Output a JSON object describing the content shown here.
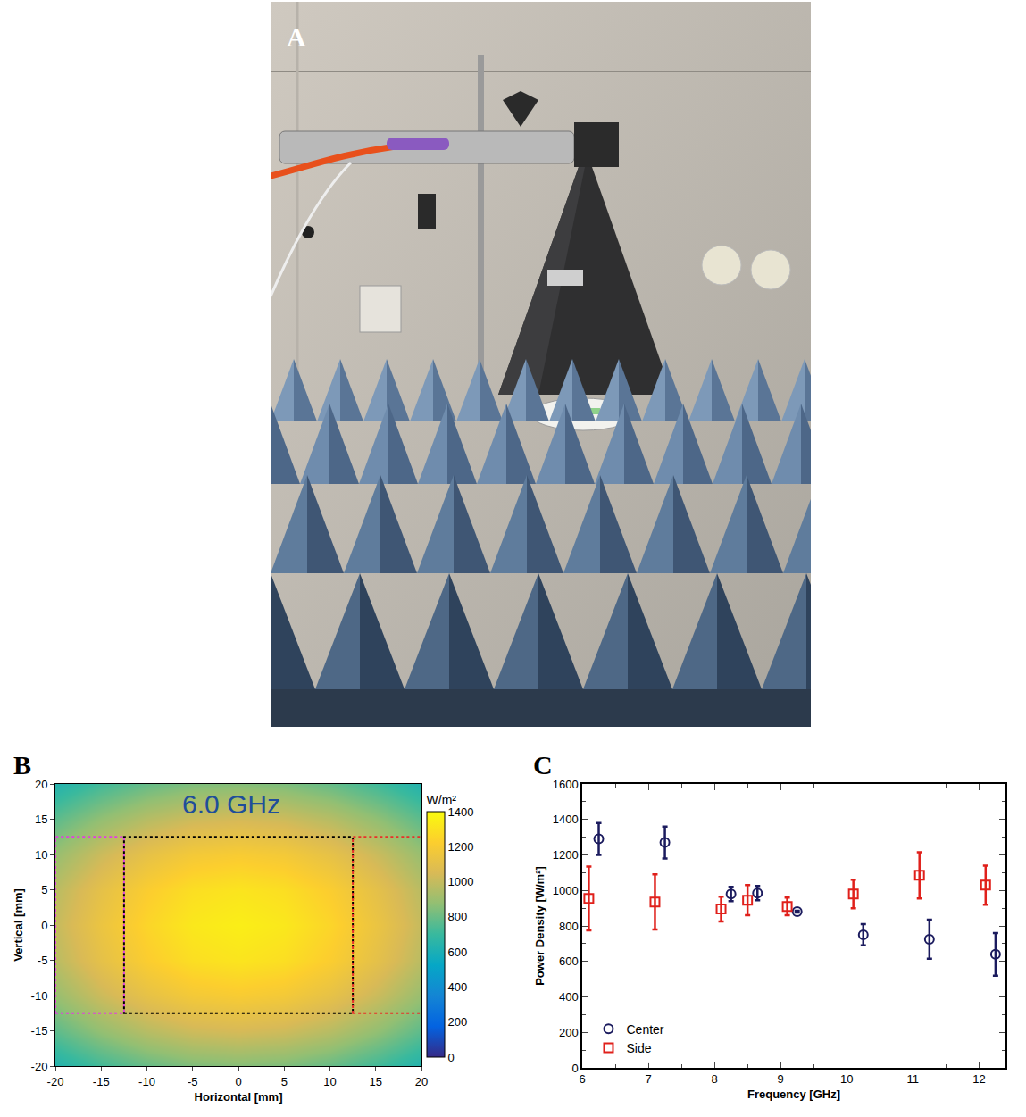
{
  "photo": {
    "label": "A"
  },
  "chart_data": [
    {
      "type": "heatmap",
      "label": "B",
      "annotations": [
        "6.0 GHz"
      ],
      "x_label": "Horizontal [mm]",
      "y_label": "Vertical [mm]",
      "x": [
        -20,
        -15,
        -10,
        -5,
        0,
        5,
        10,
        15,
        20
      ],
      "y": [
        -20,
        -15,
        -10,
        -5,
        0,
        5,
        10,
        15,
        20
      ],
      "cells": [
        [
          631,
          720,
          791,
          837,
          852,
          837,
          791,
          720,
          631
        ],
        [
          772,
          880,
          967,
          1023,
          1042,
          1023,
          967,
          880,
          772
        ],
        [
          891,
          1016,
          1116,
          1181,
          1203,
          1181,
          1116,
          1016,
          891
        ],
        [
          972,
          1108,
          1217,
          1288,
          1312,
          1288,
          1217,
          1108,
          972
        ],
        [
          1000,
          1140,
          1252,
          1325,
          1350,
          1325,
          1252,
          1140,
          1000
        ],
        [
          972,
          1108,
          1217,
          1288,
          1312,
          1288,
          1217,
          1108,
          972
        ],
        [
          891,
          1016,
          1116,
          1181,
          1203,
          1181,
          1116,
          1016,
          891
        ],
        [
          772,
          880,
          967,
          1023,
          1042,
          1023,
          967,
          880,
          772
        ],
        [
          631,
          720,
          791,
          837,
          852,
          837,
          791,
          720,
          631
        ]
      ],
      "xlim": [
        -20,
        20
      ],
      "ylim": [
        -20,
        20
      ],
      "xticks": [
        -20,
        -15,
        -10,
        -5,
        0,
        5,
        10,
        15,
        20
      ],
      "yticks": [
        -20,
        -15,
        -10,
        -5,
        0,
        5,
        10,
        15,
        20
      ],
      "colorbar": {
        "title": "W/m²",
        "range": [
          0,
          1400
        ],
        "ticks": [
          0,
          200,
          400,
          600,
          800,
          1000,
          1200,
          1400
        ]
      },
      "regions": [
        {
          "x": [
            -20,
            -12.5
          ],
          "y": [
            -12.5,
            12.5
          ],
          "color": "#e040e0"
        },
        {
          "x": [
            -12.5,
            12.5
          ],
          "y": [
            -12.5,
            12.5
          ],
          "color": "#000000"
        },
        {
          "x": [
            12.5,
            20
          ],
          "y": [
            -12.5,
            12.5
          ],
          "color": "#e8302a"
        }
      ]
    },
    {
      "type": "scatter",
      "label": "C",
      "x_label": "Frequency [GHz]",
      "y_label": "Power Density [W/m²]",
      "xlim": [
        6,
        12.4
      ],
      "ylim": [
        0,
        1600
      ],
      "xticks": [
        6,
        7,
        8,
        9,
        10,
        11,
        12
      ],
      "yticks": [
        0,
        200,
        400,
        600,
        800,
        1000,
        1200,
        1400,
        1600
      ],
      "legend": "lower left",
      "series": [
        {
          "name": "Center",
          "color": "#1b1b5e",
          "marker": "circle-open",
          "x": [
            6.25,
            7.25,
            8.25,
            8.65,
            9.25,
            10.25,
            11.25,
            12.25
          ],
          "values": [
            1290,
            1270,
            980,
            985,
            880,
            750,
            725,
            640
          ],
          "errors": [
            90,
            90,
            40,
            40,
            5,
            60,
            110,
            120
          ]
        },
        {
          "name": "Side",
          "color": "#e0201b",
          "marker": "square-open",
          "x": [
            6.1,
            7.1,
            8.1,
            8.5,
            9.1,
            10.1,
            11.1,
            12.1
          ],
          "values": [
            955,
            935,
            895,
            945,
            910,
            980,
            1085,
            1030
          ],
          "errors": [
            180,
            155,
            70,
            85,
            50,
            80,
            130,
            110
          ]
        }
      ]
    }
  ]
}
